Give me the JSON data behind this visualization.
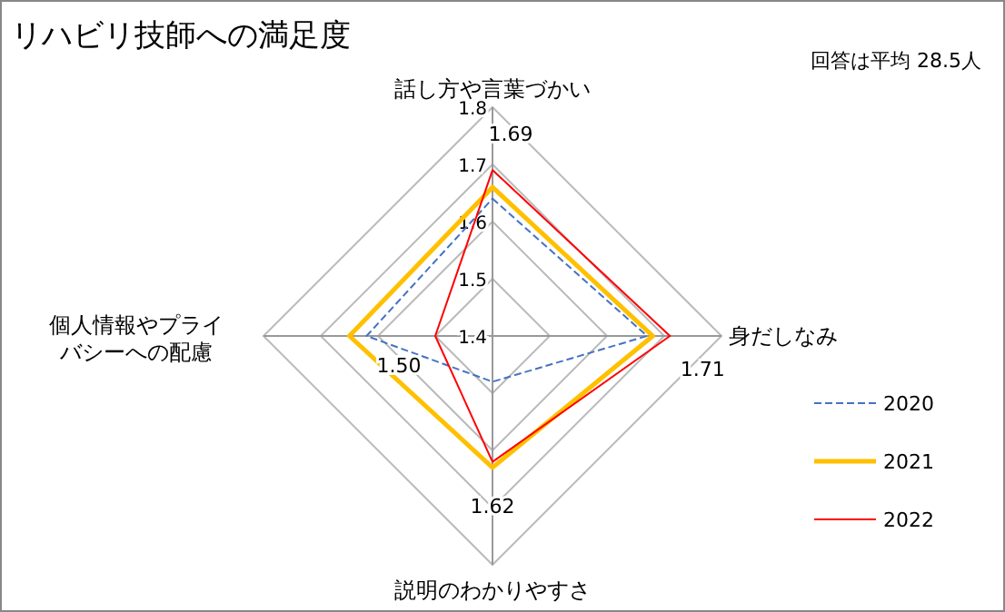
{
  "chart_data": {
    "type": "radar",
    "title": "リハビリ技師への満足度",
    "annotations": [
      "回答は平均 28.5人"
    ],
    "categories": [
      "話し方や言葉づかい",
      "身だしなみ",
      "説明のわかりやすさ",
      "個人情報やプライバシーへの配慮"
    ],
    "ylim": [
      1.4,
      1.8
    ],
    "yticks": [
      1.4,
      1.5,
      1.6,
      1.7,
      1.8
    ],
    "legend": "right",
    "series": [
      {
        "name": "2020",
        "color": "#4472c4",
        "line_style": "dashed",
        "values": [
          1.64,
          1.67,
          1.48,
          1.62
        ]
      },
      {
        "name": "2021",
        "color": "#ffc000",
        "values": [
          1.66,
          1.68,
          1.63,
          1.65
        ]
      },
      {
        "name": "2022",
        "color": "#ff0000",
        "values": [
          1.69,
          1.71,
          1.62,
          1.5
        ],
        "value_labels": [
          "1.69",
          "1.71",
          "1.62",
          "1.50"
        ]
      }
    ]
  }
}
